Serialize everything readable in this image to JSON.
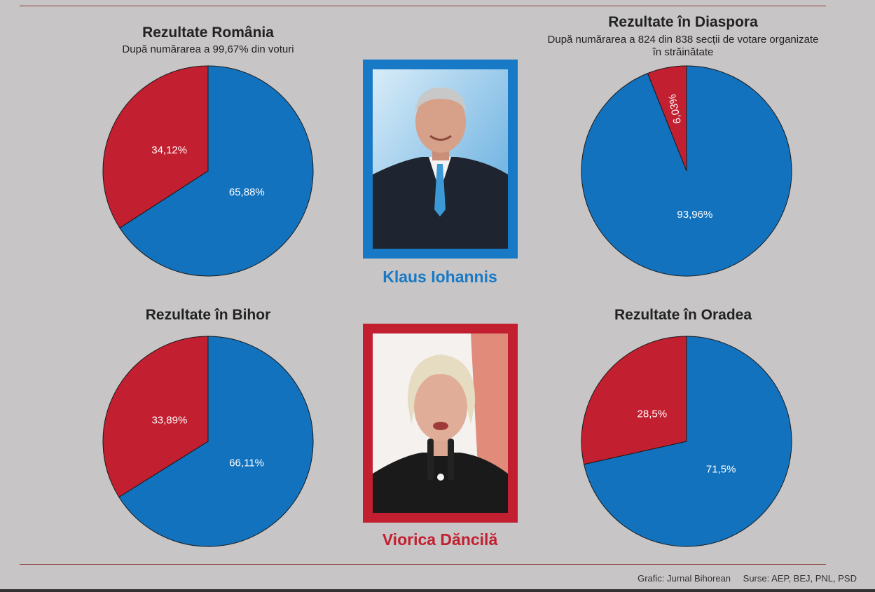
{
  "colors": {
    "blue": "#1272bd",
    "red": "#c21f30",
    "background": "#c7c5c6"
  },
  "candidates": [
    {
      "name": "Klaus Iohannis",
      "color": "#1879c6",
      "photo_icon": "man-portrait-icon"
    },
    {
      "name": "Viorica Dăncilă",
      "color": "#c21f30",
      "photo_icon": "woman-portrait-icon"
    }
  ],
  "chart_data": [
    {
      "type": "pie",
      "title": "Rezultate România",
      "subtitle": "După numărarea a 99,67% din voturi",
      "slices": [
        {
          "label": "65,88%",
          "value": 65.88,
          "color": "#1272bd"
        },
        {
          "label": "34,12%",
          "value": 34.12,
          "color": "#c21f30"
        }
      ]
    },
    {
      "type": "pie",
      "title": "Rezultate în Diaspora",
      "subtitle": "După numărarea a 824 din 838 secții de votare organizate în străinătate",
      "slices": [
        {
          "label": "93,96%",
          "value": 93.96,
          "color": "#1272bd"
        },
        {
          "label": "6,03%",
          "value": 6.03,
          "color": "#c21f30"
        }
      ]
    },
    {
      "type": "pie",
      "title": "Rezultate în Bihor",
      "subtitle": "",
      "slices": [
        {
          "label": "66,11%",
          "value": 66.11,
          "color": "#1272bd"
        },
        {
          "label": "33,89%",
          "value": 33.89,
          "color": "#c21f30"
        }
      ]
    },
    {
      "type": "pie",
      "title": "Rezultate în Oradea",
      "subtitle": "",
      "slices": [
        {
          "label": "71,5%",
          "value": 71.5,
          "color": "#1272bd"
        },
        {
          "label": "28,5%",
          "value": 28.5,
          "color": "#c21f30"
        }
      ]
    }
  ],
  "footer": {
    "credit": "Grafic: Jurnal Bihorean",
    "sources": "Surse: AEP, BEJ, PNL, PSD"
  }
}
